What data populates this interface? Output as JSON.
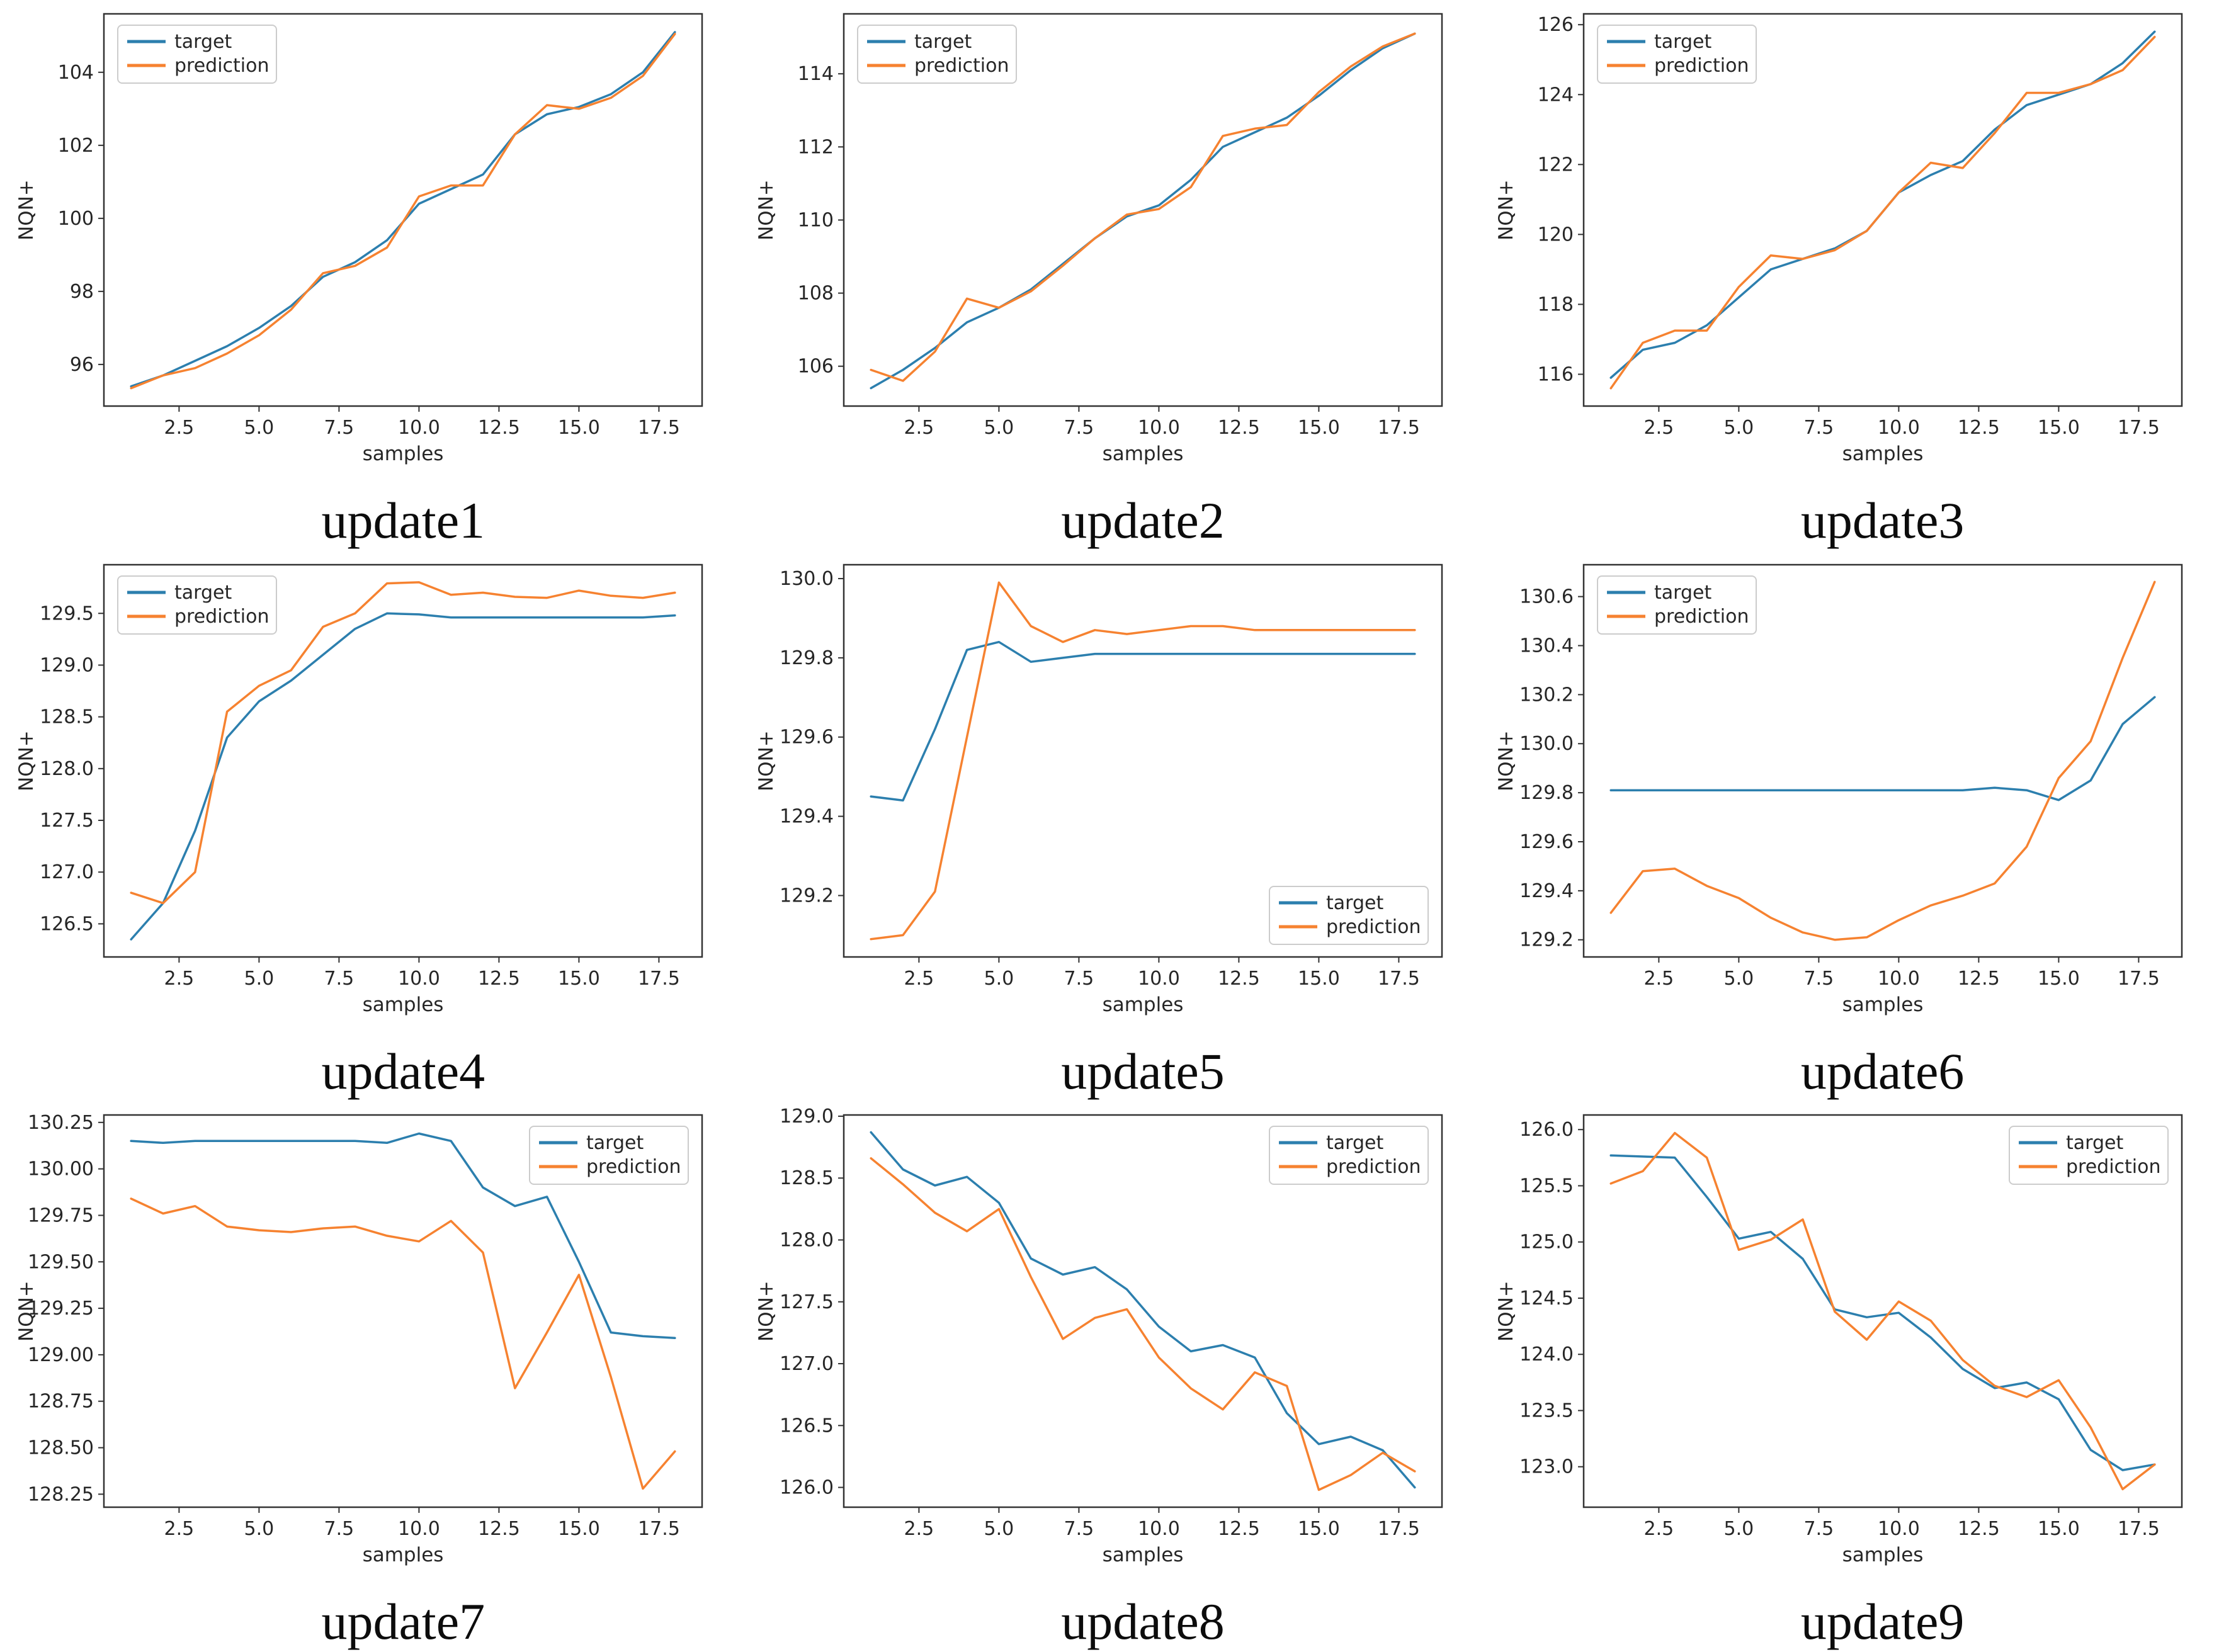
{
  "figure": {
    "background": "#ffffff"
  },
  "colors": {
    "target": "#2c7fae",
    "prediction": "#f68230"
  },
  "axis_style": {
    "spine_color": "#333333",
    "tick_color": "#333333",
    "label_color": "#262626"
  },
  "legend_labels": {
    "target": "target",
    "prediction": "prediction"
  },
  "chart_data": [
    {
      "type": "line",
      "title": "update1",
      "xlabel": "samples",
      "ylabel": "NQN+",
      "x": [
        1,
        2,
        3,
        4,
        5,
        6,
        7,
        8,
        9,
        10,
        11,
        12,
        13,
        14,
        15,
        16,
        17,
        18
      ],
      "xlim": [
        0.15,
        18.85
      ],
      "xticks": [
        2.5,
        5.0,
        7.5,
        10.0,
        12.5,
        15.0,
        17.5
      ],
      "ylim": [
        94.86,
        105.6
      ],
      "yticks": [
        96,
        98,
        100,
        102,
        104
      ],
      "ydecimals": 0,
      "legend": "upper-left",
      "grid": false,
      "series": [
        {
          "name": "target",
          "values": [
            95.4,
            95.7,
            96.1,
            96.5,
            97.0,
            97.6,
            98.4,
            98.8,
            99.4,
            100.4,
            100.8,
            101.2,
            102.3,
            102.85,
            103.05,
            103.4,
            104.0,
            105.1
          ]
        },
        {
          "name": "prediction",
          "values": [
            95.35,
            95.7,
            95.9,
            96.3,
            96.8,
            97.5,
            98.5,
            98.7,
            99.2,
            100.6,
            100.9,
            100.9,
            102.3,
            103.1,
            103.0,
            103.3,
            103.9,
            105.05
          ]
        }
      ]
    },
    {
      "type": "line",
      "title": "update2",
      "xlabel": "samples",
      "ylabel": "NQN+",
      "x": [
        1,
        2,
        3,
        4,
        5,
        6,
        7,
        8,
        9,
        10,
        11,
        12,
        13,
        14,
        15,
        16,
        17,
        18
      ],
      "xlim": [
        0.15,
        18.85
      ],
      "xticks": [
        2.5,
        5.0,
        7.5,
        10.0,
        12.5,
        15.0,
        17.5
      ],
      "ylim": [
        104.91,
        115.64
      ],
      "yticks": [
        106,
        108,
        110,
        112,
        114
      ],
      "ydecimals": 0,
      "legend": "upper-left",
      "grid": false,
      "series": [
        {
          "name": "target",
          "values": [
            105.4,
            105.9,
            106.5,
            107.2,
            107.6,
            108.1,
            108.8,
            109.5,
            110.1,
            110.4,
            111.1,
            112.0,
            112.4,
            112.8,
            113.4,
            114.1,
            114.7,
            115.1
          ]
        },
        {
          "name": "prediction",
          "values": [
            105.9,
            105.6,
            106.4,
            107.85,
            107.6,
            108.05,
            108.75,
            109.5,
            110.15,
            110.3,
            110.9,
            112.3,
            112.5,
            112.6,
            113.5,
            114.2,
            114.75,
            115.1
          ]
        }
      ]
    },
    {
      "type": "line",
      "title": "update3",
      "xlabel": "samples",
      "ylabel": "NQN+",
      "x": [
        1,
        2,
        3,
        4,
        5,
        6,
        7,
        8,
        9,
        10,
        11,
        12,
        13,
        14,
        15,
        16,
        17,
        18
      ],
      "xlim": [
        0.15,
        18.85
      ],
      "xticks": [
        2.5,
        5.0,
        7.5,
        10.0,
        12.5,
        15.0,
        17.5
      ],
      "ylim": [
        115.09,
        126.31
      ],
      "yticks": [
        116,
        118,
        120,
        122,
        124,
        126
      ],
      "ydecimals": 0,
      "legend": "upper-left",
      "grid": false,
      "series": [
        {
          "name": "target",
          "values": [
            115.9,
            116.7,
            116.9,
            117.4,
            118.2,
            119.0,
            119.3,
            119.6,
            120.1,
            121.2,
            121.7,
            122.1,
            123.0,
            123.7,
            124.0,
            124.3,
            124.9,
            125.8
          ]
        },
        {
          "name": "prediction",
          "values": [
            115.6,
            116.9,
            117.25,
            117.25,
            118.5,
            119.4,
            119.3,
            119.55,
            120.1,
            121.2,
            122.05,
            121.9,
            122.9,
            124.05,
            124.05,
            124.3,
            124.7,
            125.65
          ]
        }
      ]
    },
    {
      "type": "line",
      "title": "update4",
      "xlabel": "samples",
      "ylabel": "NQN+",
      "x": [
        1,
        2,
        3,
        4,
        5,
        6,
        7,
        8,
        9,
        10,
        11,
        12,
        13,
        14,
        15,
        16,
        17,
        18
      ],
      "xlim": [
        0.15,
        18.85
      ],
      "xticks": [
        2.5,
        5.0,
        7.5,
        10.0,
        12.5,
        15.0,
        17.5
      ],
      "ylim": [
        126.18,
        129.97
      ],
      "yticks": [
        126.5,
        127.0,
        127.5,
        128.0,
        128.5,
        129.0,
        129.5
      ],
      "ydecimals": 1,
      "legend": "upper-left",
      "grid": false,
      "series": [
        {
          "name": "target",
          "values": [
            126.35,
            126.7,
            127.4,
            128.3,
            128.65,
            128.85,
            129.1,
            129.35,
            129.5,
            129.49,
            129.46,
            129.46,
            129.46,
            129.46,
            129.46,
            129.46,
            129.46,
            129.48
          ]
        },
        {
          "name": "prediction",
          "values": [
            126.8,
            126.7,
            127.0,
            128.55,
            128.8,
            128.95,
            129.37,
            129.5,
            129.79,
            129.8,
            129.68,
            129.7,
            129.66,
            129.65,
            129.72,
            129.67,
            129.65,
            129.7
          ]
        }
      ]
    },
    {
      "type": "line",
      "title": "update5",
      "xlabel": "samples",
      "ylabel": "NQN+",
      "x": [
        1,
        2,
        3,
        4,
        5,
        6,
        7,
        8,
        9,
        10,
        11,
        12,
        13,
        14,
        15,
        16,
        17,
        18
      ],
      "xlim": [
        0.15,
        18.85
      ],
      "xticks": [
        2.5,
        5.0,
        7.5,
        10.0,
        12.5,
        15.0,
        17.5
      ],
      "ylim": [
        129.045,
        130.035
      ],
      "yticks": [
        129.2,
        129.4,
        129.6,
        129.8,
        130.0
      ],
      "ydecimals": 1,
      "legend": "lower-right",
      "grid": false,
      "series": [
        {
          "name": "target",
          "values": [
            129.45,
            129.44,
            129.62,
            129.82,
            129.84,
            129.79,
            129.8,
            129.81,
            129.81,
            129.81,
            129.81,
            129.81,
            129.81,
            129.81,
            129.81,
            129.81,
            129.81,
            129.81
          ]
        },
        {
          "name": "prediction",
          "values": [
            129.09,
            129.1,
            129.21,
            129.6,
            129.99,
            129.88,
            129.84,
            129.87,
            129.86,
            129.87,
            129.88,
            129.88,
            129.87,
            129.87,
            129.87,
            129.87,
            129.87,
            129.87
          ]
        }
      ]
    },
    {
      "type": "line",
      "title": "update6",
      "xlabel": "samples",
      "ylabel": "NQN+",
      "x": [
        1,
        2,
        3,
        4,
        5,
        6,
        7,
        8,
        9,
        10,
        11,
        12,
        13,
        14,
        15,
        16,
        17,
        18
      ],
      "xlim": [
        0.15,
        18.85
      ],
      "xticks": [
        2.5,
        5.0,
        7.5,
        10.0,
        12.5,
        15.0,
        17.5
      ],
      "ylim": [
        129.13,
        130.73
      ],
      "yticks": [
        129.2,
        129.4,
        129.6,
        129.8,
        130.0,
        130.2,
        130.4,
        130.6
      ],
      "ydecimals": 1,
      "legend": "upper-left",
      "grid": false,
      "series": [
        {
          "name": "target",
          "values": [
            129.81,
            129.81,
            129.81,
            129.81,
            129.81,
            129.81,
            129.81,
            129.81,
            129.81,
            129.81,
            129.81,
            129.81,
            129.82,
            129.81,
            129.77,
            129.85,
            130.08,
            130.19
          ]
        },
        {
          "name": "prediction",
          "values": [
            129.31,
            129.48,
            129.49,
            129.42,
            129.37,
            129.29,
            129.23,
            129.2,
            129.21,
            129.28,
            129.34,
            129.38,
            129.43,
            129.58,
            129.86,
            130.01,
            130.35,
            130.66
          ]
        }
      ]
    },
    {
      "type": "line",
      "title": "update7",
      "xlabel": "samples",
      "ylabel": "NQN+",
      "x": [
        1,
        2,
        3,
        4,
        5,
        6,
        7,
        8,
        9,
        10,
        11,
        12,
        13,
        14,
        15,
        16,
        17,
        18
      ],
      "xlim": [
        0.15,
        18.85
      ],
      "xticks": [
        2.5,
        5.0,
        7.5,
        10.0,
        12.5,
        15.0,
        17.5
      ],
      "ylim": [
        128.18,
        130.29
      ],
      "yticks": [
        128.25,
        128.5,
        128.75,
        129.0,
        129.25,
        129.5,
        129.75,
        130.0,
        130.25
      ],
      "ydecimals": 2,
      "legend": "upper-right",
      "grid": false,
      "series": [
        {
          "name": "target",
          "values": [
            130.15,
            130.14,
            130.15,
            130.15,
            130.15,
            130.15,
            130.15,
            130.15,
            130.14,
            130.19,
            130.15,
            129.9,
            129.8,
            129.85,
            129.5,
            129.12,
            129.1,
            129.09
          ]
        },
        {
          "name": "prediction",
          "values": [
            129.84,
            129.76,
            129.8,
            129.69,
            129.67,
            129.66,
            129.68,
            129.69,
            129.64,
            129.61,
            129.72,
            129.55,
            128.82,
            129.12,
            129.43,
            128.88,
            128.28,
            128.48
          ]
        }
      ]
    },
    {
      "type": "line",
      "title": "update8",
      "xlabel": "samples",
      "ylabel": "NQN+",
      "x": [
        1,
        2,
        3,
        4,
        5,
        6,
        7,
        8,
        9,
        10,
        11,
        12,
        13,
        14,
        15,
        16,
        17,
        18
      ],
      "xlim": [
        0.15,
        18.85
      ],
      "xticks": [
        2.5,
        5.0,
        7.5,
        10.0,
        12.5,
        15.0,
        17.5
      ],
      "ylim": [
        125.84,
        129.01
      ],
      "yticks": [
        126.0,
        126.5,
        127.0,
        127.5,
        128.0,
        128.5,
        129.0
      ],
      "ydecimals": 1,
      "legend": "upper-right",
      "grid": false,
      "series": [
        {
          "name": "target",
          "values": [
            128.87,
            128.57,
            128.44,
            128.51,
            128.3,
            127.85,
            127.72,
            127.78,
            127.6,
            127.3,
            127.1,
            127.15,
            127.05,
            126.6,
            126.35,
            126.41,
            126.3,
            126.0
          ]
        },
        {
          "name": "prediction",
          "values": [
            128.66,
            128.45,
            128.22,
            128.07,
            128.25,
            127.7,
            127.2,
            127.37,
            127.44,
            127.05,
            126.8,
            126.63,
            126.93,
            126.82,
            125.98,
            126.1,
            126.28,
            126.13
          ]
        }
      ]
    },
    {
      "type": "line",
      "title": "update9",
      "xlabel": "samples",
      "ylabel": "NQN+",
      "x": [
        1,
        2,
        3,
        4,
        5,
        6,
        7,
        8,
        9,
        10,
        11,
        12,
        13,
        14,
        15,
        16,
        17,
        18
      ],
      "xlim": [
        0.15,
        18.85
      ],
      "xticks": [
        2.5,
        5.0,
        7.5,
        10.0,
        12.5,
        15.0,
        17.5
      ],
      "ylim": [
        122.64,
        126.13
      ],
      "yticks": [
        123.0,
        123.5,
        124.0,
        124.5,
        125.0,
        125.5,
        126.0
      ],
      "ydecimals": 1,
      "legend": "upper-right",
      "grid": false,
      "series": [
        {
          "name": "target",
          "values": [
            125.77,
            125.76,
            125.75,
            125.4,
            125.03,
            125.09,
            124.85,
            124.4,
            124.33,
            124.37,
            124.15,
            123.87,
            123.7,
            123.75,
            123.6,
            123.15,
            122.97,
            123.02
          ]
        },
        {
          "name": "prediction",
          "values": [
            125.52,
            125.63,
            125.97,
            125.75,
            124.93,
            125.02,
            125.2,
            124.38,
            124.13,
            124.47,
            124.3,
            123.95,
            123.72,
            123.62,
            123.77,
            123.35,
            122.8,
            123.02
          ]
        }
      ]
    }
  ]
}
